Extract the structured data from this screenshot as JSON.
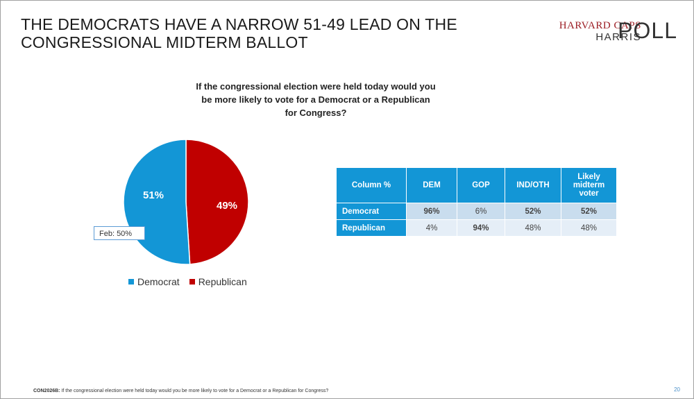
{
  "title_lines": [
    "THE DEMOCRATS HAVE A NARROW 51-49 LEAD ON THE",
    "CONGRESSIONAL MIDTERM BALLOT"
  ],
  "logo": {
    "top": "HARVARD CAPS",
    "bottom": "HARRIS",
    "poll": "POLL"
  },
  "question": "If the congressional election were held today would you be more likely to vote for a Democrat or a Republican for Congress?",
  "colors": {
    "democrat": "#1396d6",
    "republican": "#c00000",
    "header": "#1396d6"
  },
  "chart_data": {
    "type": "pie",
    "title": "",
    "slices": [
      {
        "label": "Democrat",
        "value": 51,
        "display": "51%"
      },
      {
        "label": "Republican",
        "value": 49,
        "display": "49%"
      }
    ],
    "annotation": "Feb: 50%",
    "legend_position": "bottom"
  },
  "legend": [
    {
      "label": "Democrat",
      "color": "#1396d6"
    },
    {
      "label": "Republican",
      "color": "#c00000"
    }
  ],
  "table": {
    "columns": [
      "Column %",
      "DEM",
      "GOP",
      "IND/OTH",
      "Likely midterm voter"
    ],
    "rows": [
      {
        "label": "Democrat",
        "cells": [
          "96%",
          "6%",
          "52%",
          "52%"
        ]
      },
      {
        "label": "Republican",
        "cells": [
          "4%",
          "94%",
          "48%",
          "48%"
        ]
      }
    ]
  },
  "footer": {
    "code": "CON2026B:",
    "text": "If the congressional election were held today would you be more likely to vote for a Democrat or a Republican for Congress?"
  },
  "page_number": "20"
}
